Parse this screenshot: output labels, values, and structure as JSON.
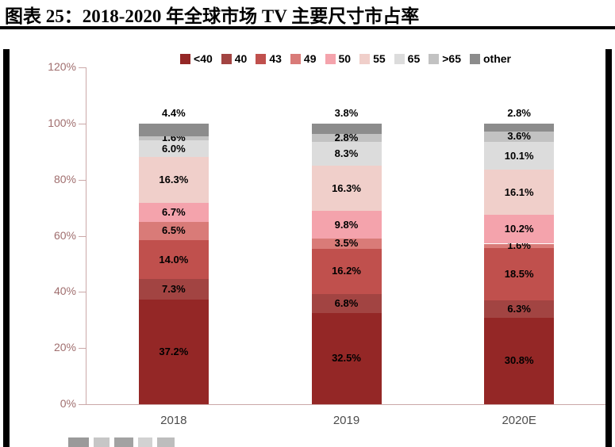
{
  "title": "图表 25：2018-2020 年全球市场 TV 主要尺寸市占率",
  "chart_data": {
    "type": "bar",
    "subtype": "stacked",
    "title": "2018-2020 年全球市场 TV 主要尺寸市占率",
    "categories": [
      "2018",
      "2019",
      "2020E"
    ],
    "series": [
      {
        "name": "<40",
        "color": "#942726",
        "values": [
          37.2,
          32.5,
          30.8
        ]
      },
      {
        "name": "40",
        "color": "#A24442",
        "values": [
          7.3,
          6.8,
          6.3
        ]
      },
      {
        "name": "43",
        "color": "#C0504D",
        "values": [
          14.0,
          16.2,
          18.5
        ]
      },
      {
        "name": "49",
        "color": "#D97B78",
        "values": [
          6.5,
          3.5,
          1.6
        ]
      },
      {
        "name": "50",
        "color": "#F4A3AC",
        "values": [
          6.7,
          9.8,
          10.2
        ]
      },
      {
        "name": "55",
        "color": "#F0CFCA",
        "values": [
          16.3,
          16.3,
          16.1
        ]
      },
      {
        "name": "65",
        "color": "#DCDCDC",
        "values": [
          6.0,
          8.3,
          10.1
        ]
      },
      {
        "name": ">65",
        "color": "#C2C2C2",
        "values": [
          1.6,
          2.8,
          3.6
        ]
      },
      {
        "name": "other",
        "color": "#8C8C8C",
        "values": [
          4.4,
          3.8,
          2.8
        ],
        "label_position": "above"
      }
    ],
    "xlabel": "",
    "ylabel": "",
    "ylim": [
      0,
      120
    ],
    "ytick_step": 20,
    "ytick_format": "percent",
    "value_label_format": "one_decimal_percent",
    "legend_position": "top",
    "grid": false
  }
}
